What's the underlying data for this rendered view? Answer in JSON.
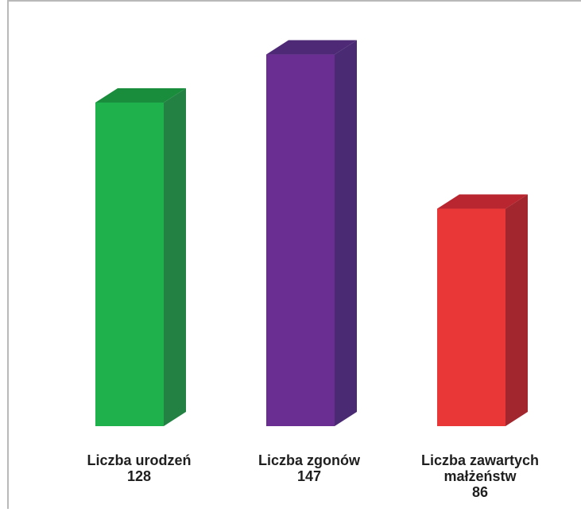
{
  "chart_data": {
    "type": "bar",
    "categories": [
      "Liczba urodzeń",
      "Liczba zgonów",
      "Liczba zawartych\nmałżeństw"
    ],
    "values": [
      128,
      147,
      86
    ],
    "colors": {
      "bars": [
        "#1fb14c",
        "#6a2d91",
        "#e93636"
      ],
      "bar_sides": [
        "#248144",
        "#4a2a73",
        "#a1262d"
      ],
      "bar_tops": [
        "#1a8d3d",
        "#4e2a76",
        "#b9262f"
      ]
    },
    "title": "",
    "xlabel": "",
    "ylabel": "",
    "ylim": [
      0,
      160
    ],
    "grid": false,
    "legend": "none"
  }
}
